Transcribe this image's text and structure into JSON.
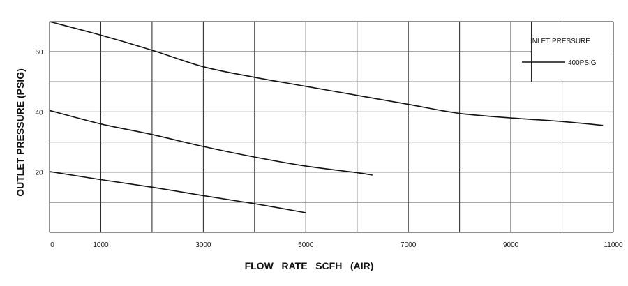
{
  "chart_data": {
    "type": "line",
    "title": "",
    "xlabel": "FLOW   RATE   SCFH   (AIR)",
    "ylabel": "OUTLET PRESSURE (PSIG)",
    "xlim": [
      0,
      11000
    ],
    "ylim": [
      0,
      70
    ],
    "x_gridlines": [
      0,
      1000,
      2000,
      3000,
      4000,
      5000,
      6000,
      7000,
      8000,
      9000,
      10000,
      11000
    ],
    "y_gridlines": [
      0,
      10,
      20,
      30,
      40,
      50,
      60,
      70
    ],
    "x_tick_labels": [
      {
        "value": 0,
        "label": "0"
      },
      {
        "value": 1000,
        "label": "1000"
      },
      {
        "value": 3000,
        "label": "3000"
      },
      {
        "value": 5000,
        "label": "5000"
      },
      {
        "value": 7000,
        "label": "7000"
      },
      {
        "value": 9000,
        "label": "9000"
      },
      {
        "value": 11000,
        "label": "11000"
      }
    ],
    "y_tick_labels": [
      {
        "value": 20,
        "label": "20"
      },
      {
        "value": 40,
        "label": "40"
      },
      {
        "value": 60,
        "label": "60"
      }
    ],
    "grid": true,
    "legend": {
      "placement": "top-right",
      "title": "INLET PRESSURE",
      "entries": [
        "400PSIG"
      ]
    },
    "series": [
      {
        "x": [
          0,
          1000,
          2000,
          3000,
          4000,
          5000,
          6000,
          7000,
          8000,
          9000,
          10000,
          10800
        ],
        "y": [
          70,
          65.5,
          60.5,
          55,
          51.5,
          48.5,
          45.5,
          42.5,
          39.5,
          38,
          36.8,
          35.5
        ]
      },
      {
        "x": [
          0,
          1000,
          2000,
          3000,
          4000,
          5000,
          6000,
          6300
        ],
        "y": [
          40.5,
          36,
          32.5,
          28.5,
          25,
          22,
          19.8,
          19
        ]
      },
      {
        "x": [
          0,
          1000,
          2000,
          3000,
          4000,
          5000
        ],
        "y": [
          20.2,
          17.5,
          15,
          12.2,
          9.5,
          6.5
        ]
      }
    ]
  }
}
